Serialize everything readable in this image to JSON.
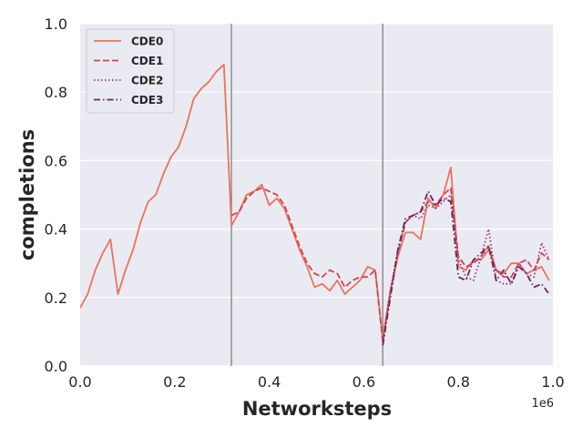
{
  "chart_data": {
    "type": "line",
    "title": "",
    "xlabel": "Networksteps",
    "ylabel": "completions",
    "x_offset_label": "1e6",
    "xlim": [
      0,
      1.0
    ],
    "ylim": [
      0,
      1.0
    ],
    "x_ticks": [
      "0.0",
      "0.2",
      "0.4",
      "0.6",
      "0.8",
      "1.0"
    ],
    "y_ticks": [
      "0.0",
      "0.2",
      "0.4",
      "0.6",
      "0.8",
      "1.0"
    ],
    "grid": true,
    "legend_position": "top-left",
    "vertical_lines": [
      0.32,
      0.64
    ],
    "series": [
      {
        "name": "CDE0",
        "color": "#e8745c",
        "dash": "solid",
        "points": [
          [
            0,
            0.17
          ],
          [
            0.016,
            0.21
          ],
          [
            0.032,
            0.28
          ],
          [
            0.048,
            0.33
          ],
          [
            0.064,
            0.37
          ],
          [
            0.08,
            0.21
          ],
          [
            0.096,
            0.28
          ],
          [
            0.112,
            0.34
          ],
          [
            0.128,
            0.42
          ],
          [
            0.144,
            0.48
          ],
          [
            0.16,
            0.5
          ],
          [
            0.176,
            0.56
          ],
          [
            0.192,
            0.61
          ],
          [
            0.208,
            0.64
          ],
          [
            0.224,
            0.7
          ],
          [
            0.24,
            0.78
          ],
          [
            0.256,
            0.81
          ],
          [
            0.272,
            0.83
          ],
          [
            0.288,
            0.86
          ],
          [
            0.304,
            0.88
          ],
          [
            0.32,
            0.41
          ],
          [
            0.336,
            0.45
          ],
          [
            0.352,
            0.5
          ],
          [
            0.368,
            0.51
          ],
          [
            0.384,
            0.53
          ],
          [
            0.4,
            0.47
          ],
          [
            0.416,
            0.49
          ],
          [
            0.432,
            0.46
          ],
          [
            0.448,
            0.4
          ],
          [
            0.464,
            0.34
          ],
          [
            0.48,
            0.29
          ],
          [
            0.496,
            0.23
          ],
          [
            0.512,
            0.24
          ],
          [
            0.528,
            0.22
          ],
          [
            0.544,
            0.25
          ],
          [
            0.56,
            0.21
          ],
          [
            0.576,
            0.23
          ],
          [
            0.592,
            0.25
          ],
          [
            0.608,
            0.29
          ],
          [
            0.624,
            0.28
          ],
          [
            0.64,
            0.08
          ],
          [
            0.656,
            0.22
          ],
          [
            0.672,
            0.32
          ],
          [
            0.688,
            0.39
          ],
          [
            0.704,
            0.39
          ],
          [
            0.72,
            0.37
          ],
          [
            0.736,
            0.49
          ],
          [
            0.752,
            0.46
          ],
          [
            0.768,
            0.5
          ],
          [
            0.784,
            0.58
          ],
          [
            0.8,
            0.29
          ],
          [
            0.816,
            0.28
          ],
          [
            0.832,
            0.31
          ],
          [
            0.848,
            0.31
          ],
          [
            0.864,
            0.34
          ],
          [
            0.88,
            0.28
          ],
          [
            0.896,
            0.27
          ],
          [
            0.912,
            0.3
          ],
          [
            0.928,
            0.3
          ],
          [
            0.944,
            0.27
          ],
          [
            0.96,
            0.28
          ],
          [
            0.976,
            0.29
          ],
          [
            0.992,
            0.25
          ]
        ]
      },
      {
        "name": "CDE1",
        "color": "#d2454f",
        "dash": "dashed",
        "points": [
          [
            0.32,
            0.44
          ],
          [
            0.336,
            0.45
          ],
          [
            0.352,
            0.49
          ],
          [
            0.368,
            0.51
          ],
          [
            0.384,
            0.52
          ],
          [
            0.4,
            0.51
          ],
          [
            0.416,
            0.5
          ],
          [
            0.432,
            0.47
          ],
          [
            0.448,
            0.41
          ],
          [
            0.464,
            0.35
          ],
          [
            0.48,
            0.3
          ],
          [
            0.496,
            0.27
          ],
          [
            0.512,
            0.26
          ],
          [
            0.528,
            0.28
          ],
          [
            0.544,
            0.27
          ],
          [
            0.56,
            0.23
          ],
          [
            0.576,
            0.25
          ],
          [
            0.592,
            0.26
          ],
          [
            0.608,
            0.26
          ],
          [
            0.624,
            0.28
          ],
          [
            0.64,
            0.07
          ],
          [
            0.656,
            0.21
          ],
          [
            0.672,
            0.33
          ],
          [
            0.688,
            0.42
          ],
          [
            0.704,
            0.44
          ],
          [
            0.72,
            0.45
          ],
          [
            0.736,
            0.48
          ],
          [
            0.752,
            0.47
          ],
          [
            0.768,
            0.5
          ],
          [
            0.784,
            0.52
          ],
          [
            0.8,
            0.32
          ],
          [
            0.816,
            0.29
          ],
          [
            0.832,
            0.3
          ],
          [
            0.848,
            0.32
          ],
          [
            0.864,
            0.35
          ],
          [
            0.88,
            0.28
          ],
          [
            0.896,
            0.26
          ],
          [
            0.912,
            0.26
          ],
          [
            0.928,
            0.3
          ],
          [
            0.944,
            0.31
          ],
          [
            0.96,
            0.28
          ],
          [
            0.976,
            0.33
          ],
          [
            0.992,
            0.31
          ]
        ]
      },
      {
        "name": "CDE2",
        "color": "#a23673",
        "dash": "dotted",
        "points": [
          [
            0.64,
            0.07
          ],
          [
            0.656,
            0.22
          ],
          [
            0.672,
            0.34
          ],
          [
            0.688,
            0.42
          ],
          [
            0.704,
            0.44
          ],
          [
            0.72,
            0.43
          ],
          [
            0.736,
            0.47
          ],
          [
            0.752,
            0.46
          ],
          [
            0.768,
            0.48
          ],
          [
            0.784,
            0.5
          ],
          [
            0.8,
            0.31
          ],
          [
            0.816,
            0.26
          ],
          [
            0.832,
            0.25
          ],
          [
            0.848,
            0.32
          ],
          [
            0.864,
            0.4
          ],
          [
            0.88,
            0.25
          ],
          [
            0.896,
            0.24
          ],
          [
            0.912,
            0.24
          ],
          [
            0.928,
            0.3
          ],
          [
            0.944,
            0.27
          ],
          [
            0.96,
            0.26
          ],
          [
            0.976,
            0.36
          ],
          [
            0.992,
            0.31
          ]
        ]
      },
      {
        "name": "CDE3",
        "color": "#6a2460",
        "dash": "dashdot",
        "points": [
          [
            0.64,
            0.06
          ],
          [
            0.656,
            0.2
          ],
          [
            0.672,
            0.34
          ],
          [
            0.688,
            0.43
          ],
          [
            0.704,
            0.44
          ],
          [
            0.72,
            0.45
          ],
          [
            0.736,
            0.51
          ],
          [
            0.752,
            0.47
          ],
          [
            0.768,
            0.49
          ],
          [
            0.784,
            0.48
          ],
          [
            0.8,
            0.26
          ],
          [
            0.816,
            0.25
          ],
          [
            0.832,
            0.31
          ],
          [
            0.848,
            0.33
          ],
          [
            0.864,
            0.35
          ],
          [
            0.88,
            0.25
          ],
          [
            0.896,
            0.28
          ],
          [
            0.912,
            0.24
          ],
          [
            0.928,
            0.29
          ],
          [
            0.944,
            0.27
          ],
          [
            0.96,
            0.23
          ],
          [
            0.976,
            0.24
          ],
          [
            0.992,
            0.21
          ]
        ]
      }
    ]
  }
}
